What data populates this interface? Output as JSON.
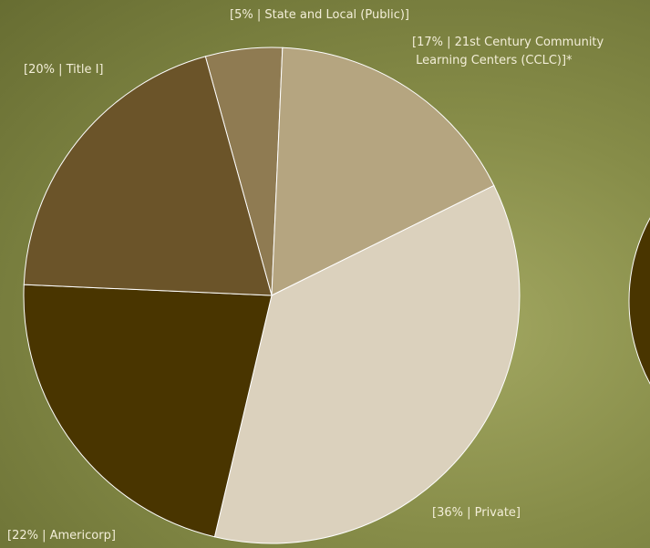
{
  "chart_data": {
    "type": "pie",
    "values": [
      5,
      17,
      36,
      22,
      20
    ],
    "value_labels": [
      "[5% | State and Local (Public)]",
      "[17% | 21st Century Community\n Learning Centers (CCLC)]*",
      "[36% | Private]",
      "[22% | Americorp]",
      "[20% | Title I]"
    ],
    "colors": [
      "#8f7b52",
      "#b5a580",
      "#dbd1bd",
      "#493500",
      "#6b5429"
    ]
  }
}
